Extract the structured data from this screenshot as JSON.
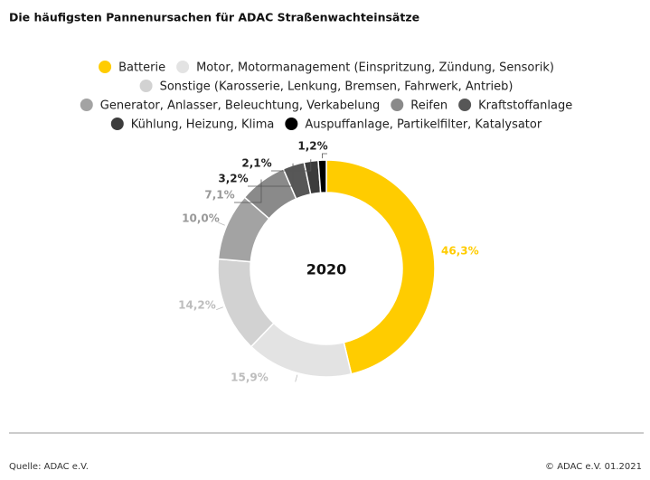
{
  "chart_data": {
    "type": "donut",
    "title": "Die häufigsten Pannenursachen für ADAC Straßenwachteinsätze",
    "center_label": "2020",
    "categories": [
      "Batterie",
      "Motor, Motormanagement (Einspritzung, Zündung, Sensorik)",
      "Sonstige (Karosserie, Lenkung, Bremsen, Fahrwerk, Antrieb)",
      "Generator, Anlasser, Beleuchtung, Verkabelung",
      "Reifen",
      "Kraftstoffanlage",
      "Kühlung, Heizung, Klima",
      "Auspuffanlage, Partikelfilter, Katalysator"
    ],
    "values": [
      46.3,
      15.9,
      14.2,
      10.0,
      7.1,
      3.2,
      2.1,
      1.2
    ],
    "value_labels": [
      "46,3%",
      "15,9%",
      "14,2%",
      "10,0%",
      "7,1%",
      "3,2%",
      "2,1%",
      "1,2%"
    ],
    "colors": [
      "#ffcc00",
      "#e3e3e3",
      "#d2d2d2",
      "#a3a3a3",
      "#8a8a8a",
      "#575757",
      "#3c3c3c",
      "#000000"
    ],
    "source": "Quelle: ADAC e.V.",
    "copyright": "© ADAC e.V. 01.2021"
  }
}
